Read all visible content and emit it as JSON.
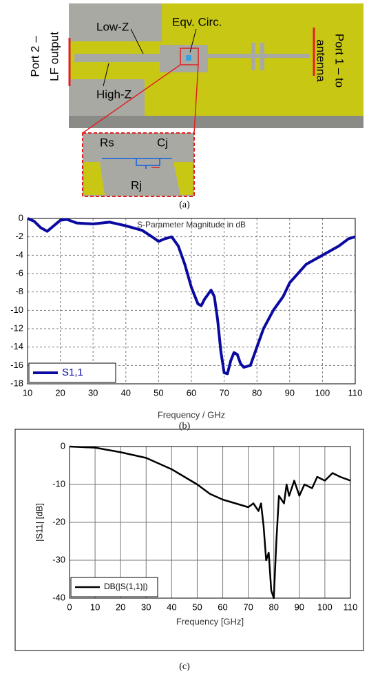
{
  "diagram": {
    "labels": {
      "port2": [
        "Port 2 –",
        "LF output"
      ],
      "port1": [
        "Port 1 – to",
        "antenna"
      ],
      "low_z": "Low-Z",
      "high_z": "High-Z",
      "eqv": "Eqv. Circ.",
      "rs": "Rs",
      "cj": "Cj",
      "rj": "Rj"
    },
    "caption": "(a)"
  },
  "chart_data": [
    {
      "type": "line",
      "title": "S-Parameter Magnitude in dB",
      "x_label": "Frequency / GHz",
      "caption": "(b)",
      "x": [
        10,
        12,
        14,
        16,
        18,
        20,
        22,
        25,
        30,
        35,
        40,
        45,
        48,
        50,
        52,
        54,
        56,
        58,
        60,
        62,
        63,
        64,
        66,
        67,
        68,
        69,
        70,
        71,
        72,
        73,
        74,
        75,
        76,
        78,
        80,
        82,
        85,
        88,
        90,
        95,
        100,
        105,
        108,
        110
      ],
      "series": [
        {
          "name": "S1,1",
          "color": "#0a0aa0",
          "values": [
            0,
            -0.3,
            -1.0,
            -1.4,
            -0.8,
            -0.2,
            -0.1,
            -0.5,
            -0.6,
            -0.4,
            -0.8,
            -1.3,
            -2.0,
            -2.5,
            -2.2,
            -2.0,
            -3.0,
            -5.0,
            -7.5,
            -9.3,
            -9.5,
            -8.8,
            -7.8,
            -8.5,
            -11,
            -14.5,
            -16.8,
            -16.9,
            -15.5,
            -14.6,
            -14.8,
            -15.8,
            -16.2,
            -16.0,
            -14.0,
            -12.0,
            -10.0,
            -8.5,
            -7.0,
            -5.0,
            -4.0,
            -3.0,
            -2.2,
            -2.0
          ]
        }
      ],
      "xlim": [
        10,
        110
      ],
      "xticks": [
        10,
        20,
        30,
        40,
        50,
        60,
        70,
        80,
        90,
        100,
        110
      ],
      "ylim": [
        -18,
        0
      ],
      "yticks": [
        0,
        -2,
        -4,
        -6,
        -8,
        -10,
        -12,
        -14,
        -16,
        -18
      ],
      "grid": "dashed",
      "legend": "lower left"
    },
    {
      "type": "line",
      "y_label": "|S11| [dB]",
      "x_label": "Frequency [GHz]",
      "caption": "(c)",
      "x": [
        0,
        10,
        20,
        30,
        40,
        50,
        55,
        60,
        65,
        70,
        72,
        74,
        75,
        76,
        77,
        78,
        79,
        80,
        81,
        82,
        84,
        85,
        86,
        88,
        90,
        92,
        95,
        97,
        100,
        103,
        106,
        110
      ],
      "series": [
        {
          "name": "DB(|S(1,1)|)",
          "color": "#000000",
          "values": [
            0,
            -0.3,
            -1.5,
            -3,
            -6,
            -10,
            -12.5,
            -14,
            -15,
            -16,
            -15,
            -17,
            -15,
            -21,
            -30,
            -28,
            -38,
            -40,
            -25,
            -13,
            -15,
            -10,
            -13,
            -9,
            -13,
            -10,
            -11,
            -8,
            -9,
            -7,
            -8,
            -9
          ]
        }
      ],
      "xlim": [
        0,
        110
      ],
      "xticks": [
        0,
        10,
        20,
        30,
        40,
        50,
        60,
        70,
        80,
        90,
        100,
        110
      ],
      "ylim": [
        -40,
        0
      ],
      "yticks": [
        0,
        -10,
        -20,
        -30,
        -40
      ],
      "grid": "solid",
      "legend": "lower left"
    }
  ]
}
